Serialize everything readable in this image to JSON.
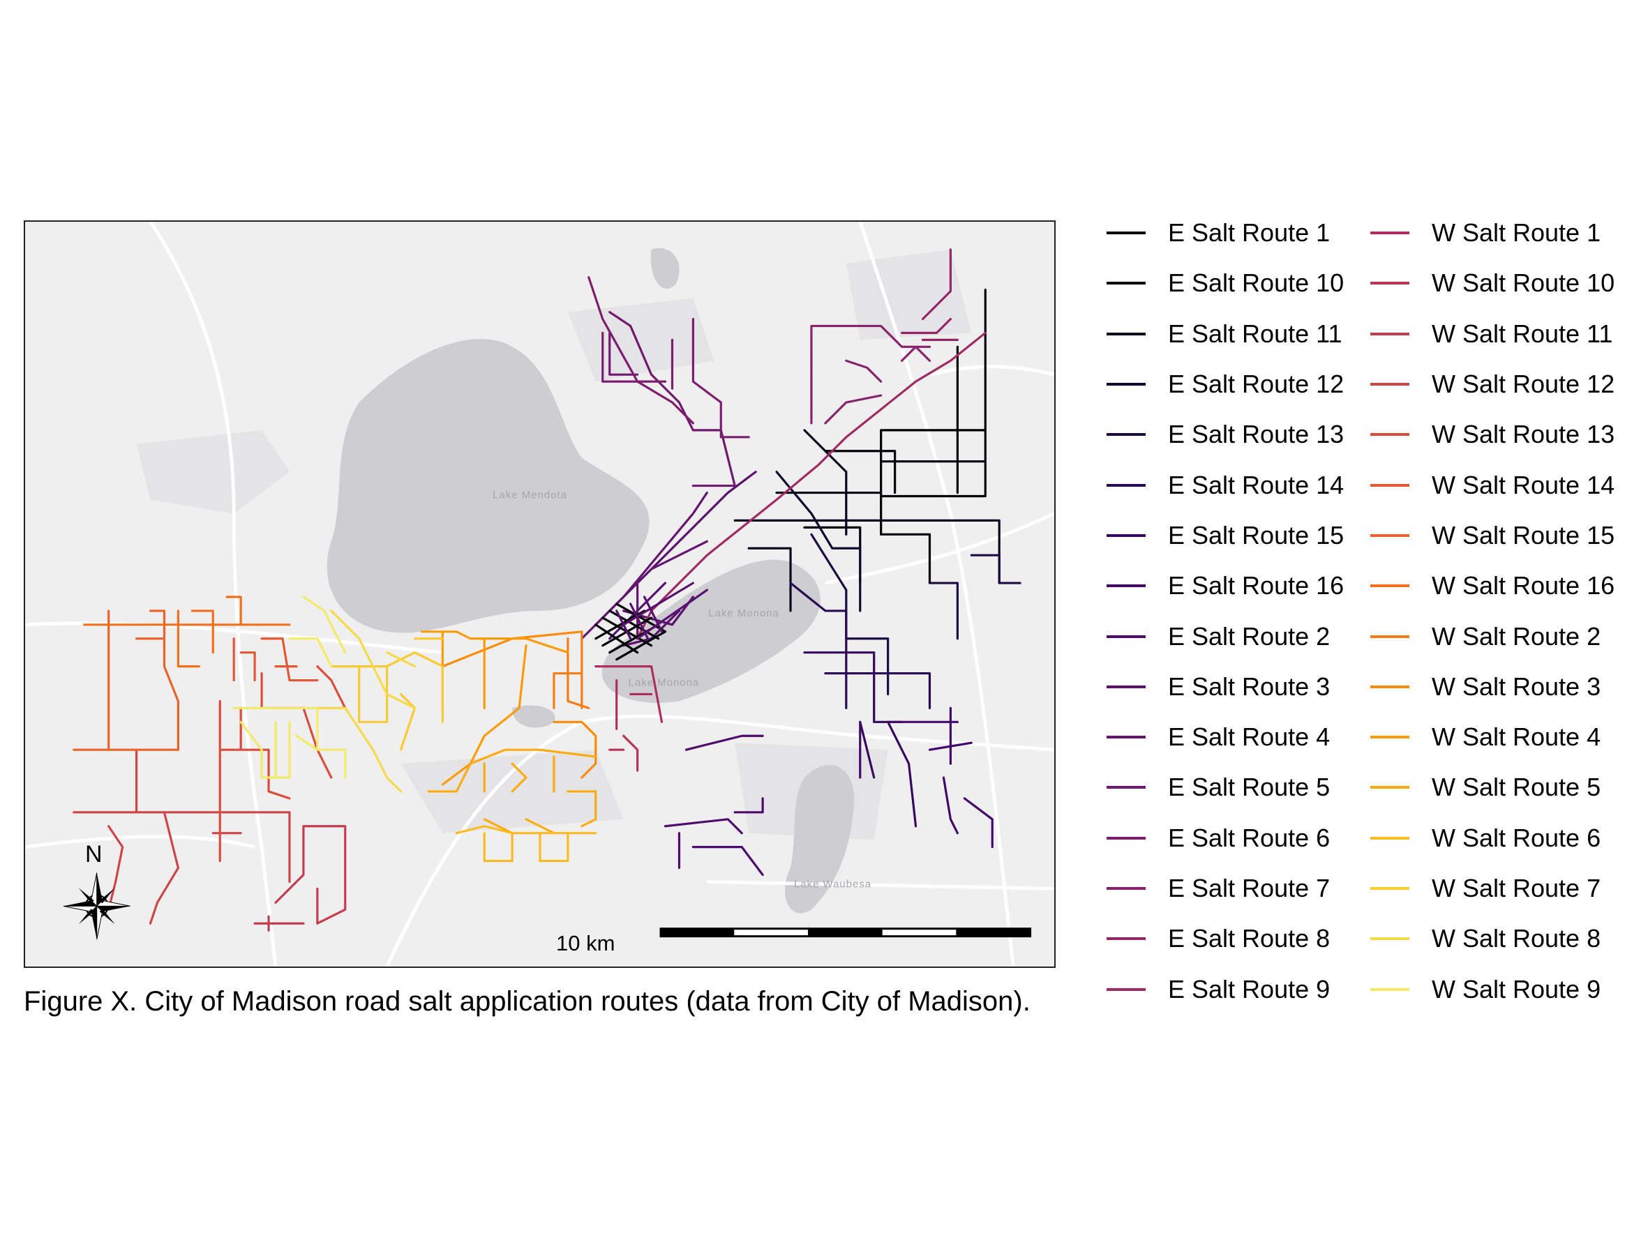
{
  "map": {
    "lakes": [
      "Lake Mendota",
      "Lake Monona",
      "Lake Monona",
      "Lake Waubesa"
    ],
    "north_label": "N",
    "scale_label": "10 km",
    "colors": {
      "background": "#efeff0",
      "land_shade": "#e4e4e6",
      "lake": "#cdcdd2",
      "roads": "#ffffff"
    }
  },
  "caption": "Figure X. City of Madison road salt application routes (data from City of Madison).",
  "legend": {
    "east": [
      {
        "label": "E Salt Route 1",
        "color": "#000004"
      },
      {
        "label": "E Salt Route 10",
        "color": "#02020c"
      },
      {
        "label": "E Salt Route 11",
        "color": "#07061c"
      },
      {
        "label": "E Salt Route 12",
        "color": "#0f0a2d"
      },
      {
        "label": "E Salt Route 13",
        "color": "#1b0c41"
      },
      {
        "label": "E Salt Route 14",
        "color": "#280b54"
      },
      {
        "label": "E Salt Route 15",
        "color": "#360961"
      },
      {
        "label": "E Salt Route 16",
        "color": "#420a68"
      },
      {
        "label": "E Salt Route 2",
        "color": "#4e0d6d"
      },
      {
        "label": "E Salt Route 3",
        "color": "#5a116e"
      },
      {
        "label": "E Salt Route 4",
        "color": "#65156e"
      },
      {
        "label": "E Salt Route 5",
        "color": "#71196e"
      },
      {
        "label": "E Salt Route 6",
        "color": "#7d1d6d"
      },
      {
        "label": "E Salt Route 7",
        "color": "#88226a"
      },
      {
        "label": "E Salt Route 8",
        "color": "#942667"
      },
      {
        "label": "E Salt Route 9",
        "color": "#a02a63"
      }
    ],
    "west": [
      {
        "label": "W Salt Route 1",
        "color": "#ac2f5e"
      },
      {
        "label": "W Salt Route 10",
        "color": "#b93556"
      },
      {
        "label": "W Salt Route 11",
        "color": "#c43c4e"
      },
      {
        "label": "W Salt Route 12",
        "color": "#cf4446"
      },
      {
        "label": "W Salt Route 13",
        "color": "#d94d3d"
      },
      {
        "label": "W Salt Route 14",
        "color": "#e25734"
      },
      {
        "label": "W Salt Route 15",
        "color": "#ea632a"
      },
      {
        "label": "W Salt Route 16",
        "color": "#f0701e"
      },
      {
        "label": "W Salt Route 2",
        "color": "#f57d15"
      },
      {
        "label": "W Salt Route 3",
        "color": "#f98c0a"
      },
      {
        "label": "W Salt Route 4",
        "color": "#fb9b06"
      },
      {
        "label": "W Salt Route 5",
        "color": "#fcab10"
      },
      {
        "label": "W Salt Route 6",
        "color": "#fbbb22"
      },
      {
        "label": "W Salt Route 7",
        "color": "#f8cb34"
      },
      {
        "label": "W Salt Route 8",
        "color": "#f5db4c"
      },
      {
        "label": "W Salt Route 9",
        "color": "#f2ea69"
      }
    ]
  }
}
